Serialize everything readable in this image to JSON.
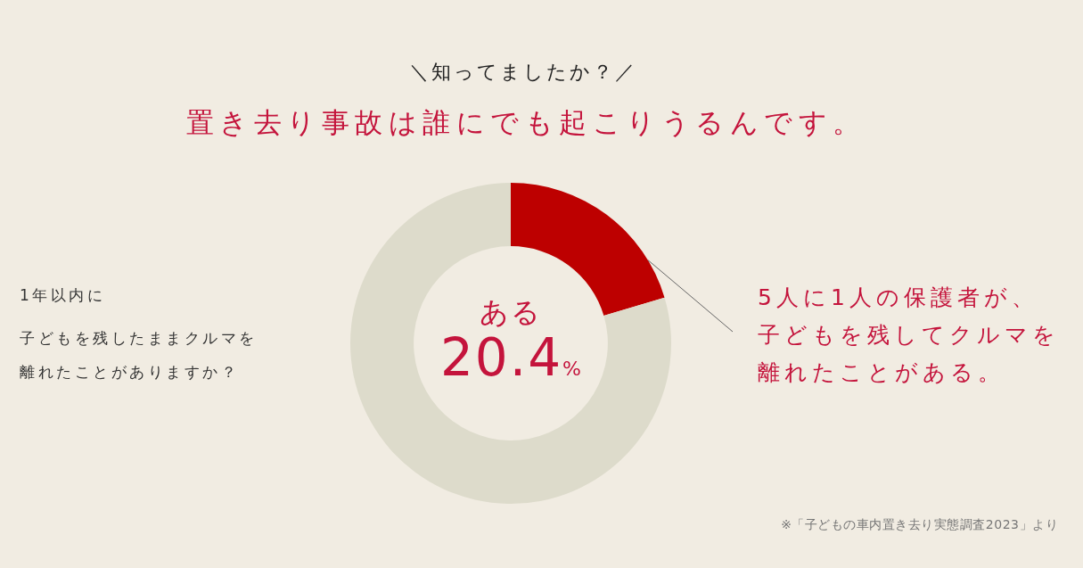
{
  "chart_data": {
    "type": "donut",
    "title": "＼知ってましたか？／",
    "subtitle": "置き去り事故は誰にでも起こりうるんです。",
    "categories": [
      "ある",
      null
    ],
    "values": [
      20.4,
      79.6
    ],
    "colors": [
      "#bd0000",
      "#dddbcb"
    ],
    "value_labels": [
      "20.4%",
      null
    ],
    "annotations": [
      "1年以内に",
      "子どもを残したままクルマを離れたことがありますか？",
      "5人に1人の保護者が、子どもを残してクルマを離れたことがある。",
      "※「子どもの車内置き去り実態調査2023」より"
    ]
  }
}
